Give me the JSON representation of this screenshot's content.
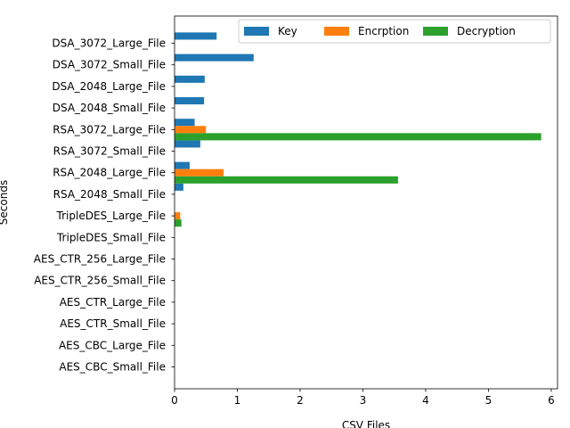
{
  "chart_data": {
    "type": "bar",
    "orientation": "horizontal",
    "xlabel": "CSV Files",
    "ylabel": "Seconds",
    "xlim": [
      0,
      6.1
    ],
    "xticks": [
      0,
      1,
      2,
      3,
      4,
      5,
      6
    ],
    "grid": false,
    "legend_position": "top-right",
    "categories": [
      "AES_CBC_Small_File",
      "AES_CBC_Large_File",
      "AES_CTR_Small_File",
      "AES_CTR_Large_File",
      "AES_CTR_256_Small_File",
      "AES_CTR_256_Large_File",
      "TripleDES_Small_File",
      "TripleDES_Large_File",
      "RSA_2048_Small_File",
      "RSA_2048_Large_File",
      "RSA_3072_Small_File",
      "RSA_3072_Large_File",
      "DSA_2048_Small_File",
      "DSA_2048_Large_File",
      "DSA_3072_Small_File",
      "DSA_3072_Large_File"
    ],
    "series": [
      {
        "name": "Key",
        "color": "#1f77b4",
        "values": [
          0,
          0,
          0,
          0,
          0,
          0,
          0,
          0,
          0.14,
          0.24,
          0.41,
          0.32,
          0.47,
          0.48,
          1.26,
          0.67
        ]
      },
      {
        "name": "Encrption",
        "color": "#ff7f0e",
        "values": [
          0,
          0,
          0,
          0,
          0,
          0,
          0,
          0.09,
          0,
          0.78,
          0,
          0.5,
          0,
          0,
          0,
          0
        ]
      },
      {
        "name": "Decryption",
        "color": "#2ca02c",
        "values": [
          0,
          0,
          0,
          0,
          0,
          0,
          0,
          0.11,
          0,
          3.56,
          0,
          5.84,
          0,
          0,
          0,
          0
        ]
      }
    ]
  }
}
